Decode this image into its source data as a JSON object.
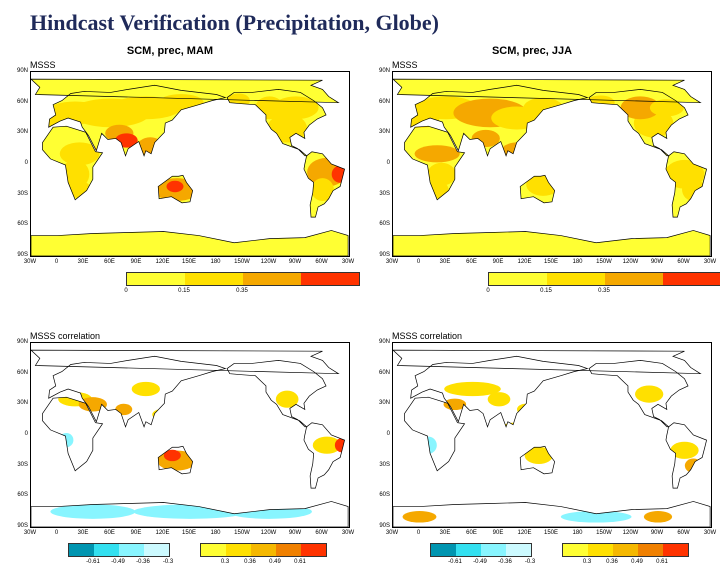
{
  "slide_title": "Hindcast Verification (Precipitation, Globe)",
  "lat_labels": [
    "90N",
    "60N",
    "30N",
    "0",
    "30S",
    "60S",
    "90S"
  ],
  "lon_labels": [
    "30W",
    "0",
    "30E",
    "60E",
    "90E",
    "120E",
    "150E",
    "180",
    "150W",
    "120W",
    "90W",
    "60W",
    "30W"
  ],
  "panels": [
    {
      "title": "SCM, prec, MAM",
      "label": "MSSS",
      "type": "msss",
      "map": "mam"
    },
    {
      "title": "SCM, prec, JJA",
      "label": "MSSS",
      "type": "msss",
      "map": "jja"
    },
    {
      "title": "",
      "label": "MSSS correlation",
      "type": "corr",
      "map": "mam"
    },
    {
      "title": "",
      "label": "MSSS correlation",
      "type": "corr",
      "map": "jja"
    }
  ],
  "colorbars": {
    "msss": {
      "colors": [
        "#ffff33",
        "#ffe000",
        "#f5a800",
        "#ff3300"
      ],
      "labels": [
        "0",
        "0.15",
        "0.35"
      ]
    },
    "corr_neg": {
      "colors": [
        "#0095b0",
        "#33e0f0",
        "#88f5ff",
        "#ccfaff"
      ],
      "labels": [
        "-0.61",
        "-0.49",
        "-0.36",
        "-0.3"
      ]
    },
    "corr_pos": {
      "colors": [
        "#ffff33",
        "#ffe000",
        "#f5b800",
        "#f08000",
        "#ff3300"
      ],
      "labels": [
        "0.3",
        "0.36",
        "0.49",
        "0.61"
      ]
    }
  }
}
